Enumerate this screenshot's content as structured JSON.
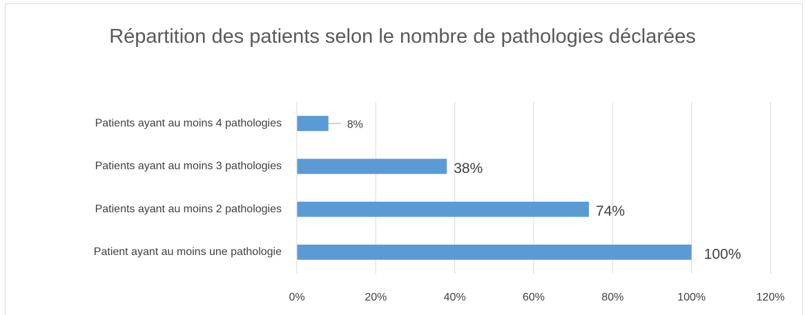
{
  "chart_data": {
    "type": "bar",
    "orientation": "horizontal",
    "title": "Répartition des patients selon le nombre de pathologies déclarées",
    "categories": [
      "Patients ayant au moins 4 pathologies",
      "Patients ayant au moins 3 pathologies",
      "Patients ayant au moins 2 pathologies",
      "Patient ayant au moins une pathologie"
    ],
    "values": [
      8,
      38,
      74,
      100
    ],
    "value_labels": [
      "8%",
      "38%",
      "74%",
      "100%"
    ],
    "color": "#5b9bd5",
    "xlim": [
      0,
      120
    ],
    "xticks": [
      {
        "value": 0,
        "label": "0%"
      },
      {
        "value": 20,
        "label": "20%"
      },
      {
        "value": 40,
        "label": "40%"
      },
      {
        "value": 60,
        "label": "60%"
      },
      {
        "value": 80,
        "label": "80%"
      },
      {
        "value": 100,
        "label": "100%"
      },
      {
        "value": 120,
        "label": "120%"
      }
    ],
    "grid": true
  }
}
